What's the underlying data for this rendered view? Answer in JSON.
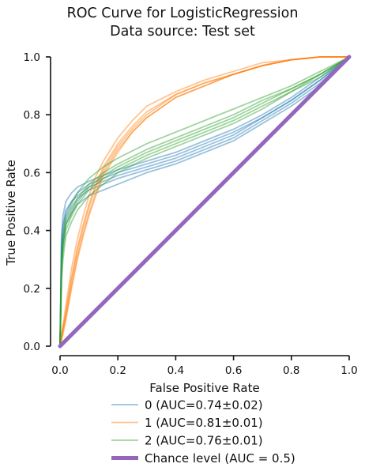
{
  "chart_data": {
    "type": "line",
    "title": "ROC Curve for LogisticRegression",
    "subtitle": "Data source: Test set",
    "xlabel": "False Positive Rate",
    "ylabel": "True Positive Rate",
    "xlim": [
      0,
      1
    ],
    "ylim": [
      0,
      1
    ],
    "xticks": [
      "0.0",
      "0.2",
      "0.4",
      "0.6",
      "0.8",
      "1.0"
    ],
    "yticks": [
      "0.0",
      "0.2",
      "0.4",
      "0.6",
      "0.8",
      "1.0"
    ],
    "grid": false,
    "legend_position": "bottom",
    "series": [
      {
        "name": "0 (AUC=0.74±0.02)",
        "color": "#1f77b4",
        "folds": [
          {
            "x": [
              0,
              0.005,
              0.01,
              0.02,
              0.04,
              0.06,
              0.1,
              0.15,
              0.2,
              0.3,
              0.4,
              0.5,
              0.6,
              0.7,
              0.8,
              0.9,
              1.0
            ],
            "y": [
              0,
              0.35,
              0.42,
              0.47,
              0.5,
              0.53,
              0.56,
              0.58,
              0.6,
              0.63,
              0.66,
              0.7,
              0.74,
              0.79,
              0.85,
              0.92,
              1.0
            ]
          },
          {
            "x": [
              0,
              0.005,
              0.01,
              0.02,
              0.04,
              0.06,
              0.1,
              0.15,
              0.2,
              0.3,
              0.4,
              0.5,
              0.6,
              0.7,
              0.8,
              0.9,
              1.0
            ],
            "y": [
              0,
              0.3,
              0.38,
              0.44,
              0.48,
              0.51,
              0.54,
              0.56,
              0.58,
              0.61,
              0.64,
              0.68,
              0.72,
              0.78,
              0.84,
              0.91,
              1.0
            ]
          },
          {
            "x": [
              0,
              0.005,
              0.01,
              0.02,
              0.04,
              0.06,
              0.1,
              0.15,
              0.2,
              0.3,
              0.4,
              0.5,
              0.6,
              0.7,
              0.8,
              0.9,
              1.0
            ],
            "y": [
              0,
              0.38,
              0.45,
              0.5,
              0.53,
              0.55,
              0.57,
              0.59,
              0.61,
              0.64,
              0.67,
              0.71,
              0.75,
              0.8,
              0.86,
              0.93,
              1.0
            ]
          },
          {
            "x": [
              0,
              0.005,
              0.01,
              0.02,
              0.04,
              0.06,
              0.1,
              0.15,
              0.2,
              0.3,
              0.4,
              0.5,
              0.6,
              0.7,
              0.8,
              0.9,
              1.0
            ],
            "y": [
              0,
              0.27,
              0.35,
              0.42,
              0.46,
              0.49,
              0.52,
              0.54,
              0.56,
              0.6,
              0.63,
              0.67,
              0.71,
              0.77,
              0.83,
              0.9,
              1.0
            ]
          },
          {
            "x": [
              0,
              0.005,
              0.01,
              0.02,
              0.04,
              0.06,
              0.1,
              0.15,
              0.2,
              0.3,
              0.4,
              0.5,
              0.6,
              0.7,
              0.8,
              0.9,
              1.0
            ],
            "y": [
              0,
              0.33,
              0.41,
              0.46,
              0.5,
              0.52,
              0.55,
              0.57,
              0.59,
              0.62,
              0.65,
              0.69,
              0.73,
              0.79,
              0.85,
              0.92,
              1.0
            ]
          }
        ]
      },
      {
        "name": "1 (AUC=0.81±0.01)",
        "color": "#ff7f0e",
        "folds": [
          {
            "x": [
              0,
              0.01,
              0.02,
              0.04,
              0.06,
              0.08,
              0.1,
              0.12,
              0.15,
              0.2,
              0.25,
              0.3,
              0.4,
              0.5,
              0.6,
              0.7,
              0.8,
              0.9,
              1.0
            ],
            "y": [
              0,
              0.06,
              0.12,
              0.24,
              0.34,
              0.42,
              0.49,
              0.55,
              0.62,
              0.7,
              0.76,
              0.81,
              0.87,
              0.91,
              0.94,
              0.97,
              0.99,
              1.0,
              1.0
            ]
          },
          {
            "x": [
              0,
              0.01,
              0.02,
              0.04,
              0.06,
              0.08,
              0.1,
              0.12,
              0.15,
              0.2,
              0.25,
              0.3,
              0.4,
              0.5,
              0.6,
              0.7,
              0.8,
              0.9,
              1.0
            ],
            "y": [
              0,
              0.05,
              0.1,
              0.21,
              0.31,
              0.39,
              0.46,
              0.52,
              0.6,
              0.68,
              0.74,
              0.79,
              0.86,
              0.9,
              0.94,
              0.97,
              0.99,
              1.0,
              1.0
            ]
          },
          {
            "x": [
              0,
              0.01,
              0.02,
              0.04,
              0.06,
              0.08,
              0.1,
              0.12,
              0.15,
              0.2,
              0.25,
              0.3,
              0.4,
              0.5,
              0.6,
              0.7,
              0.8,
              0.9,
              1.0
            ],
            "y": [
              0,
              0.07,
              0.14,
              0.27,
              0.37,
              0.45,
              0.52,
              0.58,
              0.64,
              0.72,
              0.78,
              0.83,
              0.88,
              0.92,
              0.95,
              0.98,
              0.99,
              1.0,
              1.0
            ]
          },
          {
            "x": [
              0,
              0.01,
              0.02,
              0.04,
              0.06,
              0.08,
              0.1,
              0.12,
              0.15,
              0.2,
              0.25,
              0.3,
              0.4,
              0.5,
              0.6,
              0.7,
              0.8,
              0.9,
              1.0
            ],
            "y": [
              0,
              0.04,
              0.09,
              0.2,
              0.3,
              0.38,
              0.45,
              0.51,
              0.59,
              0.67,
              0.74,
              0.79,
              0.86,
              0.9,
              0.94,
              0.97,
              0.99,
              1.0,
              1.0
            ]
          },
          {
            "x": [
              0,
              0.01,
              0.02,
              0.04,
              0.06,
              0.08,
              0.1,
              0.12,
              0.15,
              0.2,
              0.25,
              0.3,
              0.4,
              0.5,
              0.6,
              0.7,
              0.8,
              0.9,
              1.0
            ],
            "y": [
              0,
              0.06,
              0.11,
              0.23,
              0.33,
              0.41,
              0.48,
              0.54,
              0.61,
              0.69,
              0.75,
              0.8,
              0.87,
              0.91,
              0.94,
              0.97,
              0.99,
              1.0,
              1.0
            ]
          }
        ]
      },
      {
        "name": "2 (AUC=0.76±0.01)",
        "color": "#2ca02c",
        "folds": [
          {
            "x": [
              0,
              0.005,
              0.01,
              0.02,
              0.04,
              0.06,
              0.1,
              0.15,
              0.2,
              0.3,
              0.4,
              0.5,
              0.6,
              0.7,
              0.8,
              0.9,
              1.0
            ],
            "y": [
              0,
              0.28,
              0.36,
              0.42,
              0.46,
              0.5,
              0.55,
              0.59,
              0.62,
              0.67,
              0.71,
              0.75,
              0.79,
              0.84,
              0.89,
              0.94,
              1.0
            ]
          },
          {
            "x": [
              0,
              0.005,
              0.01,
              0.02,
              0.04,
              0.06,
              0.1,
              0.15,
              0.2,
              0.3,
              0.4,
              0.5,
              0.6,
              0.7,
              0.8,
              0.9,
              1.0
            ],
            "y": [
              0,
              0.25,
              0.33,
              0.4,
              0.45,
              0.49,
              0.54,
              0.58,
              0.61,
              0.66,
              0.7,
              0.74,
              0.78,
              0.83,
              0.88,
              0.94,
              1.0
            ]
          },
          {
            "x": [
              0,
              0.005,
              0.01,
              0.02,
              0.04,
              0.06,
              0.1,
              0.15,
              0.2,
              0.3,
              0.4,
              0.5,
              0.6,
              0.7,
              0.8,
              0.9,
              1.0
            ],
            "y": [
              0,
              0.3,
              0.38,
              0.45,
              0.49,
              0.53,
              0.58,
              0.62,
              0.65,
              0.7,
              0.74,
              0.78,
              0.82,
              0.86,
              0.9,
              0.95,
              1.0
            ]
          },
          {
            "x": [
              0,
              0.005,
              0.01,
              0.02,
              0.04,
              0.06,
              0.1,
              0.15,
              0.2,
              0.3,
              0.4,
              0.5,
              0.6,
              0.7,
              0.8,
              0.9,
              1.0
            ],
            "y": [
              0,
              0.22,
              0.3,
              0.38,
              0.43,
              0.47,
              0.52,
              0.56,
              0.6,
              0.65,
              0.69,
              0.73,
              0.77,
              0.82,
              0.88,
              0.93,
              1.0
            ]
          },
          {
            "x": [
              0,
              0.005,
              0.01,
              0.02,
              0.04,
              0.06,
              0.1,
              0.15,
              0.2,
              0.3,
              0.4,
              0.5,
              0.6,
              0.7,
              0.8,
              0.9,
              1.0
            ],
            "y": [
              0,
              0.27,
              0.35,
              0.43,
              0.47,
              0.51,
              0.56,
              0.6,
              0.63,
              0.68,
              0.72,
              0.76,
              0.8,
              0.85,
              0.89,
              0.94,
              1.0
            ]
          }
        ]
      },
      {
        "name": "Chance level (AUC = 0.5)",
        "color": "#9467bd",
        "folds": [
          {
            "x": [
              0,
              1
            ],
            "y": [
              0,
              1
            ]
          }
        ]
      }
    ]
  }
}
